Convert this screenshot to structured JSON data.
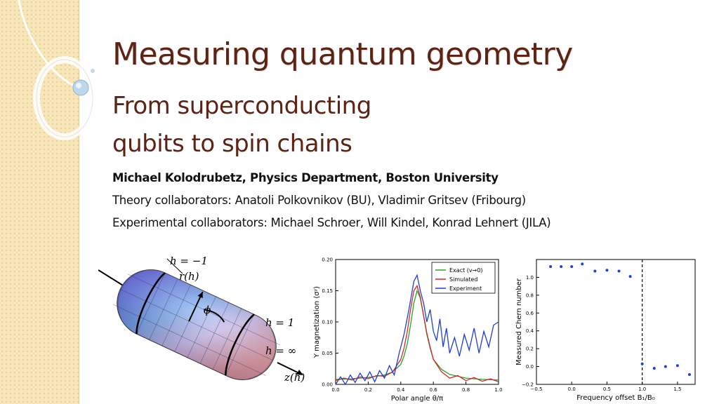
{
  "slide": {
    "title": "Measuring quantum geometry",
    "subtitle_line1": "From superconducting",
    "subtitle_line2": "qubits to spin chains",
    "author": "Michael Kolodrubetz, Physics Department, Boston University",
    "theory_collaborators": "Theory collaborators: Anatoli Polkovnikov (BU), Vladimir Gritsev (Fribourg)",
    "experimental_collaborators": "Experimental collaborators: Michael Schroer, Will Kindel, Konrad Lehnert (JILA)"
  },
  "figure_sphere": {
    "labels": {
      "h_minus_one": "h = −1",
      "r_of_h": "r(h)",
      "phi": "ϕ",
      "h_one": "h = 1",
      "h_infinity": "h = ∞",
      "z_of_h": "z(h)"
    }
  },
  "chart_data": [
    {
      "type": "line",
      "xlabel": "Polar angle θ/π",
      "ylabel": "Y magnetization ⟨σʸ⟩",
      "xlim": [
        0.0,
        1.0
      ],
      "ylim": [
        0.0,
        0.2
      ],
      "x_ticks": [
        "0.0",
        "0.2",
        "0.4",
        "0.6",
        "0.8",
        "1.0"
      ],
      "y_ticks": [
        "0.00",
        "0.05",
        "0.10",
        "0.15",
        "0.20"
      ],
      "legend_position": "top-right",
      "colors": {
        "exact": "#2ca02c",
        "simulated": "#d62728",
        "experiment": "#1f3fd6"
      },
      "series": [
        {
          "name": "Exact (v→0)",
          "x": [
            0.0,
            0.1,
            0.2,
            0.3,
            0.35,
            0.4,
            0.42,
            0.44,
            0.46,
            0.48,
            0.5,
            0.52,
            0.54,
            0.56,
            0.58,
            0.6,
            0.65,
            0.7,
            0.8,
            0.9,
            1.0
          ],
          "values": [
            0.008,
            0.009,
            0.011,
            0.015,
            0.02,
            0.032,
            0.045,
            0.065,
            0.095,
            0.13,
            0.15,
            0.138,
            0.11,
            0.08,
            0.058,
            0.04,
            0.024,
            0.016,
            0.01,
            0.008,
            0.007
          ]
        },
        {
          "name": "Simulated",
          "x": [
            0.0,
            0.05,
            0.1,
            0.15,
            0.2,
            0.25,
            0.3,
            0.35,
            0.4,
            0.42,
            0.44,
            0.46,
            0.48,
            0.5,
            0.52,
            0.54,
            0.56,
            0.58,
            0.6,
            0.65,
            0.7,
            0.75,
            0.8,
            0.85,
            0.9,
            0.95,
            1.0
          ],
          "values": [
            0.006,
            0.01,
            0.007,
            0.012,
            0.009,
            0.014,
            0.013,
            0.02,
            0.04,
            0.058,
            0.085,
            0.12,
            0.15,
            0.158,
            0.14,
            0.11,
            0.082,
            0.06,
            0.04,
            0.02,
            0.01,
            0.014,
            0.006,
            0.011,
            0.005,
            0.009,
            0.004
          ]
        },
        {
          "name": "Experiment",
          "x": [
            0.0,
            0.03,
            0.06,
            0.09,
            0.12,
            0.15,
            0.18,
            0.21,
            0.24,
            0.27,
            0.3,
            0.33,
            0.36,
            0.39,
            0.42,
            0.45,
            0.48,
            0.5,
            0.52,
            0.54,
            0.56,
            0.58,
            0.6,
            0.62,
            0.64,
            0.66,
            0.68,
            0.7,
            0.73,
            0.76,
            0.79,
            0.82,
            0.85,
            0.88,
            0.91,
            0.94,
            0.97,
            1.0
          ],
          "values": [
            0.0,
            0.012,
            -0.002,
            0.015,
            0.003,
            0.018,
            0.006,
            0.02,
            0.004,
            0.022,
            0.01,
            0.03,
            0.015,
            0.05,
            0.08,
            0.12,
            0.165,
            0.175,
            0.15,
            0.13,
            0.1,
            0.12,
            0.085,
            0.07,
            0.105,
            0.06,
            0.09,
            0.05,
            0.075,
            0.045,
            0.08,
            0.055,
            0.09,
            0.05,
            0.085,
            0.06,
            0.095,
            0.1
          ]
        }
      ]
    },
    {
      "type": "scatter",
      "xlabel": "Frequency offset B₁/B₀",
      "ylabel": "Measured Chern number",
      "xlim": [
        -0.5,
        1.75
      ],
      "ylim": [
        -0.2,
        1.2
      ],
      "x_ticks": [
        "−0.5",
        "0.0",
        "0.5",
        "1.0",
        "1.5"
      ],
      "y_ticks": [
        "−0.2",
        "0.0",
        "0.2",
        "0.4",
        "0.6",
        "0.8",
        "1.0"
      ],
      "dashed_line_x": 1.0,
      "colors": {
        "points": "#1f3fd6"
      },
      "series": [
        {
          "x": [
            -0.3,
            -0.15,
            0.0,
            0.15,
            0.33,
            0.5,
            0.67,
            0.83,
            1.0,
            1.17,
            1.33,
            1.5,
            1.67
          ],
          "values": [
            1.12,
            1.12,
            1.12,
            1.15,
            1.07,
            1.08,
            1.07,
            1.01,
            0.03,
            -0.02,
            0.0,
            0.01,
            -0.09
          ]
        }
      ]
    }
  ]
}
